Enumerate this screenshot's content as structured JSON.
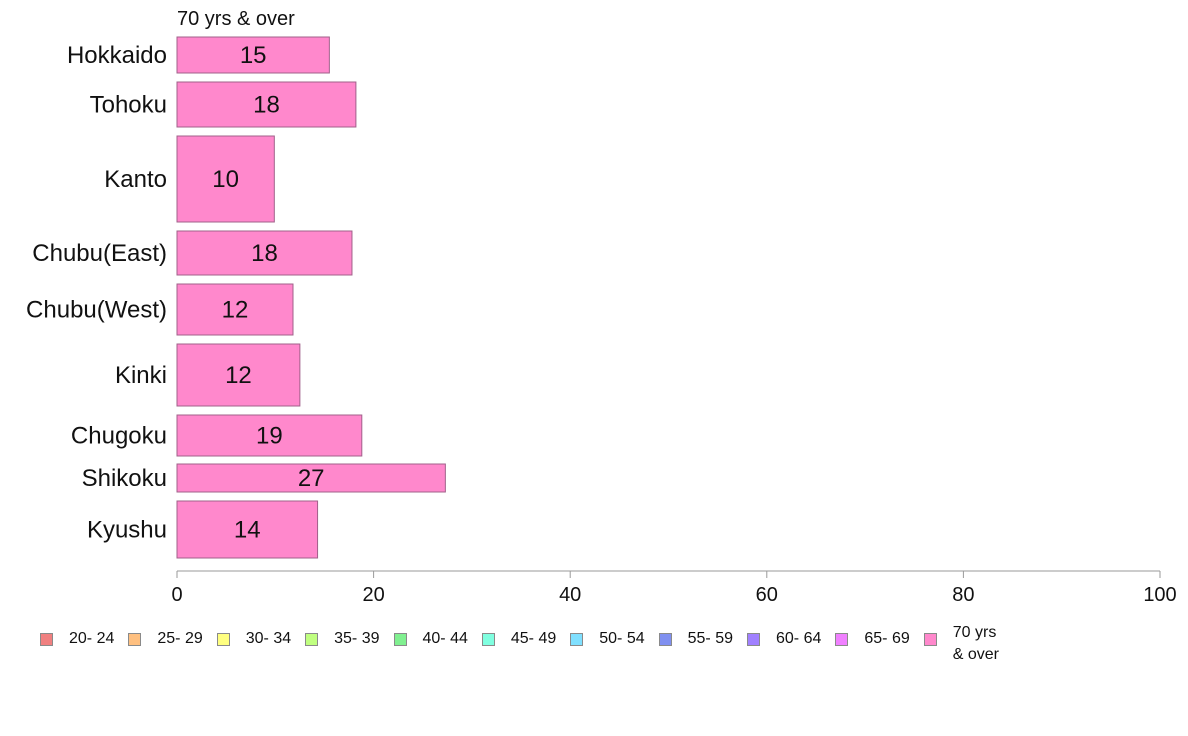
{
  "chart_data": {
    "type": "bar",
    "orientation": "horizontal",
    "title": "70 yrs & over",
    "xlabel": "",
    "ylabel": "",
    "xlim": [
      0,
      100
    ],
    "xticks": [
      "0",
      "20",
      "40",
      "60",
      "80",
      "100"
    ],
    "categories": [
      "Hokkaido",
      "Tohoku",
      "Kanto",
      "Chubu(East)",
      "Chubu(West)",
      "Kinki",
      "Chugoku",
      "Shikoku",
      "Kyushu"
    ],
    "series": [
      {
        "name": "70 yrs & over",
        "color": "#ff88cc",
        "values": [
          15.5,
          18.2,
          9.9,
          17.8,
          11.8,
          12.5,
          18.8,
          27.3,
          14.3
        ],
        "labels": [
          "15",
          "18",
          "10",
          "18",
          "12",
          "12",
          "19",
          "27",
          "14"
        ]
      }
    ],
    "legend": {
      "position": "bottom",
      "items": [
        {
          "label": "20- 24",
          "color": "#f08080"
        },
        {
          "label": "25- 29",
          "color": "#ffc080"
        },
        {
          "label": "30- 34",
          "color": "#ffff80"
        },
        {
          "label": "35- 39",
          "color": "#c0ff80"
        },
        {
          "label": "40- 44",
          "color": "#80f090"
        },
        {
          "label": "45- 49",
          "color": "#80ffe0"
        },
        {
          "label": "50- 54",
          "color": "#80e0ff"
        },
        {
          "label": "55- 59",
          "color": "#8090f0"
        },
        {
          "label": "60- 64",
          "color": "#a080ff"
        },
        {
          "label": "65- 69",
          "color": "#f080ff"
        },
        {
          "label": "70 yrs\n& over",
          "color": "#ff88cc"
        }
      ]
    },
    "grid": false
  }
}
